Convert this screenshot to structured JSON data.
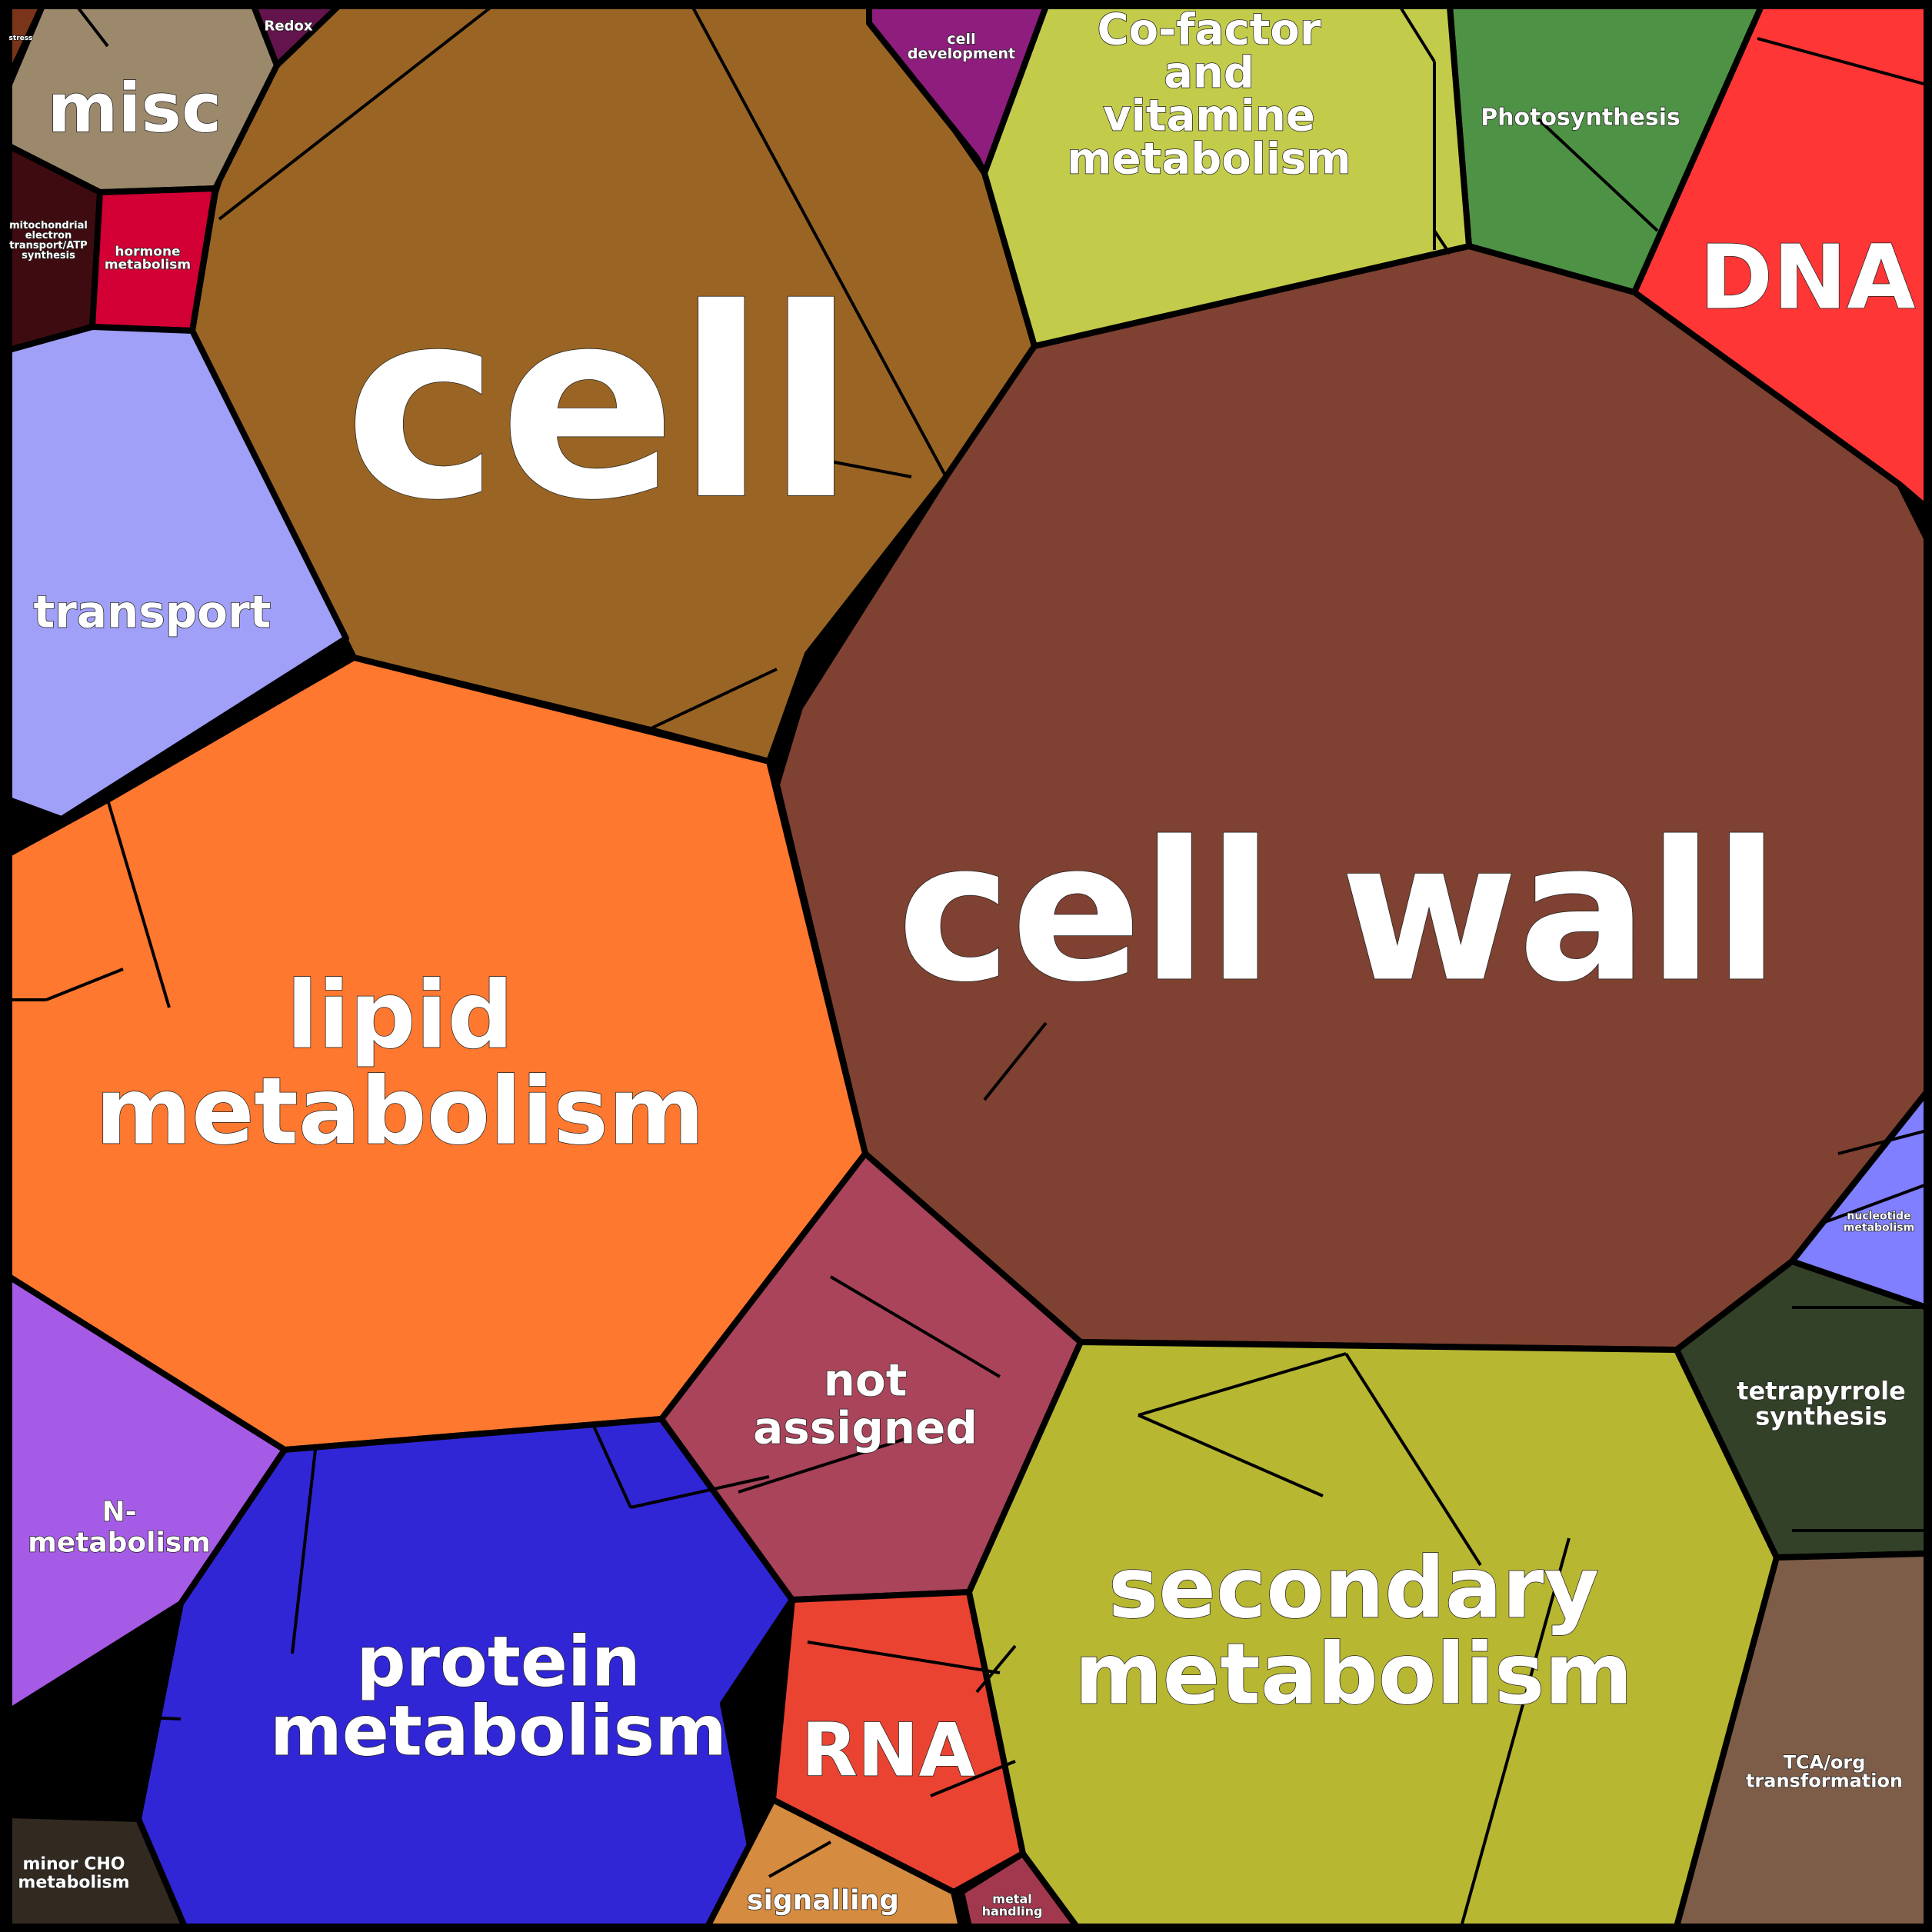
{
  "cells": [
    {
      "id": "cell",
      "label": [
        "cell"
      ],
      "color": "#9A6524"
    },
    {
      "id": "cell-wall",
      "label": [
        "cell wall"
      ],
      "color": "#7F4131"
    },
    {
      "id": "dna",
      "label": [
        "DNA"
      ],
      "color": "#FF3636"
    },
    {
      "id": "photosynthesis",
      "label": [
        "Photosynthesis"
      ],
      "color": "#4E9345"
    },
    {
      "id": "cofactor",
      "label": [
        "Co-factor",
        "and",
        "vitamine",
        "metabolism"
      ],
      "color": "#C3CB4B"
    },
    {
      "id": "cell-development",
      "label": [
        "cell",
        "development"
      ],
      "color": "#8E1D7E"
    },
    {
      "id": "misc",
      "label": [
        "misc"
      ],
      "color": "#9C896C"
    },
    {
      "id": "stress",
      "label": [
        "stress"
      ],
      "color": "#7A3419"
    },
    {
      "id": "redox",
      "label": [
        "Redox"
      ],
      "color": "#64144C"
    },
    {
      "id": "mito",
      "label": [
        "mitochondrial",
        "electron",
        "transport/ATP",
        "synthesis"
      ],
      "color": "#3E0C10"
    },
    {
      "id": "hormone",
      "label": [
        "hormone",
        "metabolism"
      ],
      "color": "#D20035"
    },
    {
      "id": "transport",
      "label": [
        "transport"
      ],
      "color": "#A0A0F8"
    },
    {
      "id": "lipid",
      "label": [
        "lipid",
        "metabolism"
      ],
      "color": "#FF7830"
    },
    {
      "id": "n-metabolism",
      "label": [
        "N-",
        "metabolism"
      ],
      "color": "#A65BE6"
    },
    {
      "id": "minor-cho",
      "label": [
        "minor CHO",
        "metabolism"
      ],
      "color": "#322A21"
    },
    {
      "id": "protein",
      "label": [
        "protein",
        "metabolism"
      ],
      "color": "#3126D6"
    },
    {
      "id": "not-assigned",
      "label": [
        "not",
        "assigned"
      ],
      "color": "#A9445A"
    },
    {
      "id": "rna",
      "label": [
        "RNA"
      ],
      "color": "#EA4332"
    },
    {
      "id": "signalling",
      "label": [
        "signalling"
      ],
      "color": "#D58B40"
    },
    {
      "id": "metal",
      "label": [
        "metal",
        "handling"
      ],
      "color": "#A2384E"
    },
    {
      "id": "secondary",
      "label": [
        "secondary",
        "metabolism"
      ],
      "color": "#B8B732"
    },
    {
      "id": "tetrapyrrole",
      "label": [
        "tetrapyrrole",
        "synthesis"
      ],
      "color": "#334128"
    },
    {
      "id": "tca",
      "label": [
        "TCA/org",
        "transformation"
      ],
      "color": "#7E5D48"
    },
    {
      "id": "nucleotide",
      "label": [
        "nucleotide",
        "metabolism"
      ],
      "color": "#7F7FFF"
    }
  ]
}
